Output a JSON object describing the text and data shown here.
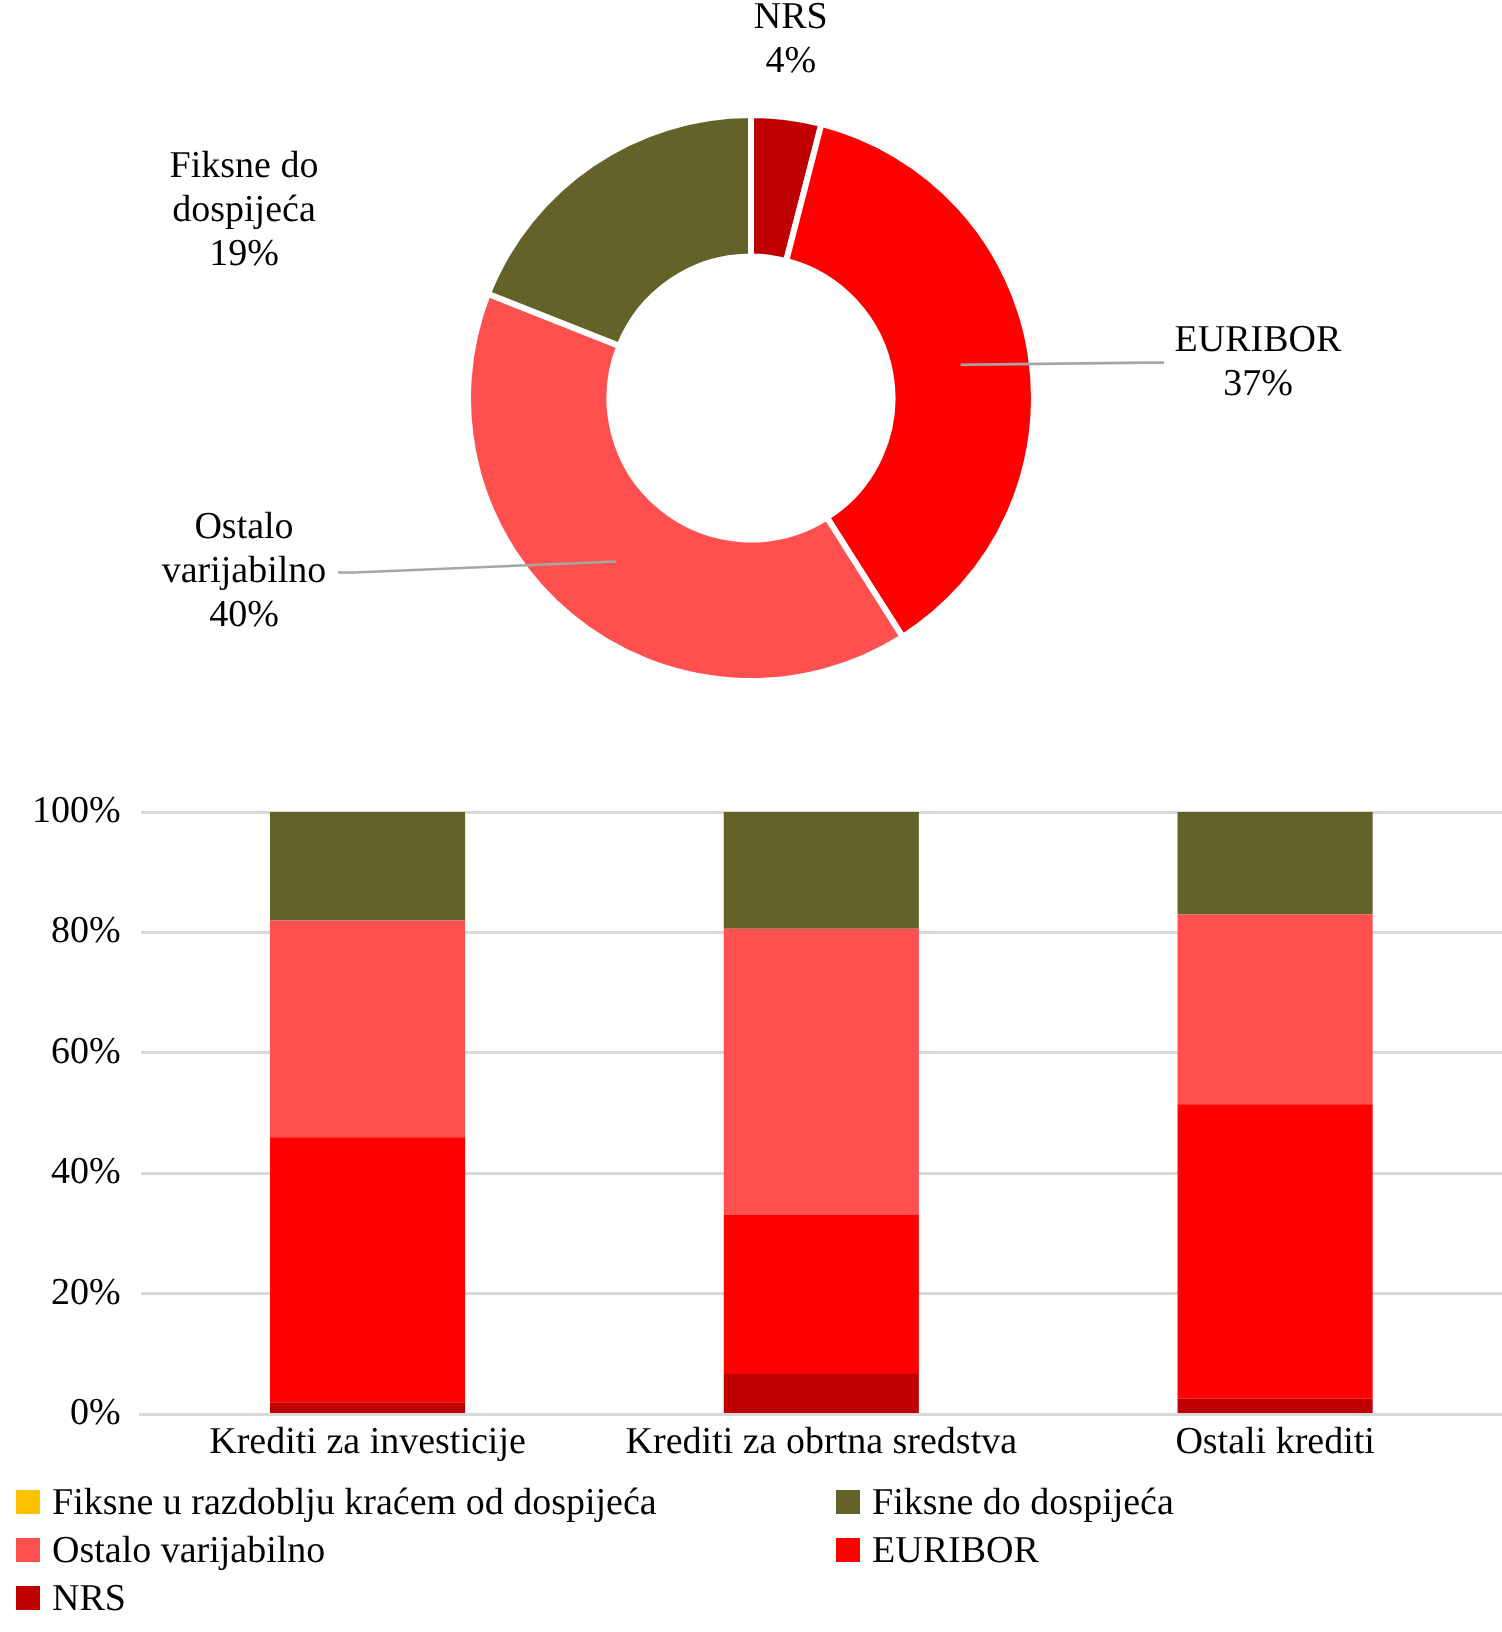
{
  "chart_data": [
    {
      "type": "donut",
      "categories": [
        "NRS",
        "EURIBOR",
        "Ostalo varijabilno",
        "Fiksne do dospijeća"
      ],
      "values": [
        4,
        37,
        40,
        19
      ],
      "colors": [
        "#c00000",
        "#ff0000",
        "#ff5050",
        "#636229"
      ],
      "value_labels": [
        "4%",
        "37%",
        "40%",
        "19%"
      ]
    },
    {
      "type": "bar",
      "stacked": true,
      "categories": [
        "Krediti za investicije",
        "Krediti za obrtna sredstva",
        "Ostali krediti"
      ],
      "series": [
        {
          "name": "NRS",
          "color": "#c00000",
          "values": [
            2,
            6.7,
            2.6
          ]
        },
        {
          "name": "EURIBOR",
          "color": "#ff0000",
          "values": [
            44,
            26.4,
            48.9
          ]
        },
        {
          "name": "Ostalo varijabilno",
          "color": "#ff5050",
          "values": [
            36,
            47.5,
            31.5
          ]
        },
        {
          "name": "Fiksne do dospijeća",
          "color": "#636229",
          "values": [
            18,
            19.4,
            17
          ]
        },
        {
          "name": "Fiksne u razdoblju kraćem od dospijeća",
          "color": "#ffc000",
          "values": [
            0,
            0,
            0
          ]
        }
      ],
      "ylim": [
        0,
        100
      ],
      "yticks": [
        {
          "value": 0,
          "label": "0%"
        },
        {
          "value": 20,
          "label": "20%"
        },
        {
          "value": 40,
          "label": "40%"
        },
        {
          "value": 60,
          "label": "60%"
        },
        {
          "value": 80,
          "label": "80%"
        },
        {
          "value": 100,
          "label": "100%"
        }
      ],
      "grid": "y",
      "legend": "bottom"
    }
  ]
}
